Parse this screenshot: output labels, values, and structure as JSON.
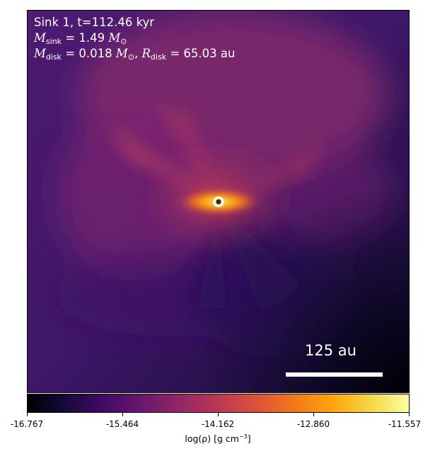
{
  "info": {
    "line1": "Sink 1, t=112.46 kyr",
    "msink_symbol": "M",
    "msink_sub": "sink",
    "msink_value": "= 1.49",
    "msink_unit": "M",
    "msink_unit_sub": "⊙",
    "mdisk_symbol": "M",
    "mdisk_sub": "disk",
    "mdisk_value": "= 0.018",
    "mdisk_unit": "M",
    "mdisk_unit_sub": "⊙",
    "rdisk_symbol": "R",
    "rdisk_sub": "disk",
    "rdisk_value": "= 65.03 au"
  },
  "scale_bar_label": "125 au",
  "colorbar": {
    "ticks": [
      "-16.767",
      "-15.464",
      "-14.162",
      "-12.860",
      "-11.557"
    ],
    "label_prefix": "log(ρ) [g cm",
    "label_exp": "−3",
    "label_suffix": "]",
    "colormap": "inferno"
  }
}
